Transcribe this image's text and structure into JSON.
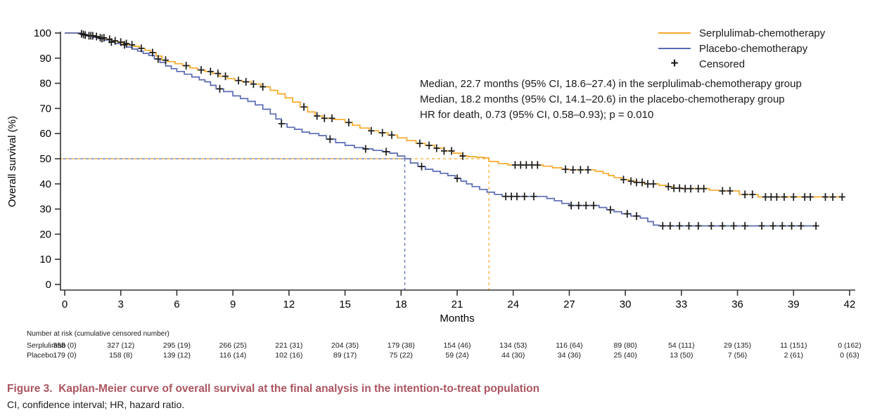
{
  "legend": {
    "series": [
      {
        "label": "Serplulimab-chemotherapy",
        "color": "#F7A82A"
      },
      {
        "label": "Placebo-chemotherapy",
        "color": "#5A6AB3"
      }
    ],
    "censored_symbol": "+",
    "censored_label": "Censored"
  },
  "annotation": {
    "line1": "Median, 22.7 months (95% CI, 18.6–27.4) in the serplulimab-chemotherapy group",
    "line2": "Median, 18.2 months (95% CI, 14.1–20.6) in the placebo-chemotherapy group",
    "line3": "HR for death, 0.73 (95% CI, 0.58–0.93); p = 0.010"
  },
  "risk_table": {
    "header": "Number at risk (cumulative censored number)",
    "rows": [
      {
        "label": "Serplulimab",
        "values": [
          "358 (0)",
          "327 (12)",
          "295 (19)",
          "266 (25)",
          "221 (31)",
          "204 (35)",
          "179 (38)",
          "154 (46)",
          "134 (53)",
          "116 (64)",
          "89 (80)",
          "54 (111)",
          "29 (135)",
          "11 (151)",
          "0 (162)"
        ]
      },
      {
        "label": "Placebo",
        "values": [
          "179 (0)",
          "158 (8)",
          "139 (12)",
          "116 (14)",
          "102 (16)",
          "89 (17)",
          "75 (22)",
          "59 (24)",
          "44 (30)",
          "34 (36)",
          "25 (40)",
          "13 (50)",
          "7 (56)",
          "2 (61)",
          "0 (63)"
        ]
      }
    ]
  },
  "caption": {
    "title": "Figure 3.  Kaplan-Meier curve of overall survival at the final analysis in the intention-to-treat population",
    "footnote": "CI, confidence interval; HR, hazard ratio."
  },
  "chart_data": {
    "type": "line",
    "subtype": "kaplan-meier-step",
    "title": "",
    "xlabel": "Months",
    "ylabel": "Overall survival (%)",
    "xlim": [
      0,
      42
    ],
    "ylim": [
      0,
      100
    ],
    "x_ticks": [
      0,
      3,
      6,
      9,
      12,
      15,
      18,
      21,
      24,
      27,
      30,
      33,
      36,
      39,
      42
    ],
    "y_ticks": [
      0,
      10,
      20,
      30,
      40,
      50,
      60,
      70,
      80,
      90,
      100
    ],
    "grid": false,
    "legend_position": "top-right",
    "axis_color": "#333333",
    "censor_color": "#1a1a1a",
    "medians": {
      "serplulimab_months": 22.7,
      "placebo_months": 18.2,
      "guide_survival_pct": 50
    },
    "series": [
      {
        "name": "Serplulimab-chemotherapy",
        "color": "#F7A82A",
        "steps": [
          [
            0,
            100
          ],
          [
            0.7,
            99.7
          ],
          [
            1,
            99.2
          ],
          [
            1.3,
            98.9
          ],
          [
            1.6,
            98.6
          ],
          [
            1.9,
            98.1
          ],
          [
            2.2,
            97.5
          ],
          [
            2.5,
            96.9
          ],
          [
            2.8,
            96.4
          ],
          [
            3.1,
            95.8
          ],
          [
            3.4,
            95.3
          ],
          [
            3.7,
            94.7
          ],
          [
            4,
            93.9
          ],
          [
            4.3,
            93.1
          ],
          [
            4.6,
            92.2
          ],
          [
            4.9,
            90.8
          ],
          [
            5.2,
            89.2
          ],
          [
            5.5,
            88.6
          ],
          [
            5.9,
            87.8
          ],
          [
            6.3,
            87
          ],
          [
            6.7,
            86.1
          ],
          [
            7.1,
            85.3
          ],
          [
            7.5,
            84.7
          ],
          [
            7.9,
            83.9
          ],
          [
            8.3,
            82.8
          ],
          [
            8.7,
            81.9
          ],
          [
            9.1,
            81.1
          ],
          [
            9.5,
            80.6
          ],
          [
            10,
            79.7
          ],
          [
            10.5,
            78.6
          ],
          [
            11,
            77.2
          ],
          [
            11.4,
            75.8
          ],
          [
            11.8,
            74.2
          ],
          [
            12.2,
            72.5
          ],
          [
            12.6,
            70.6
          ],
          [
            13,
            68.6
          ],
          [
            13.4,
            67
          ],
          [
            13.8,
            66.1
          ],
          [
            14.4,
            65.6
          ],
          [
            15,
            64.4
          ],
          [
            15.4,
            63.3
          ],
          [
            15.8,
            62.2
          ],
          [
            16.3,
            61.1
          ],
          [
            16.8,
            60.3
          ],
          [
            17.3,
            59.4
          ],
          [
            17.8,
            58.3
          ],
          [
            18.3,
            57.2
          ],
          [
            18.8,
            56.1
          ],
          [
            19.3,
            55.3
          ],
          [
            19.8,
            54.2
          ],
          [
            20.3,
            53.1
          ],
          [
            20.8,
            52.2
          ],
          [
            21.2,
            51.1
          ],
          [
            21.6,
            50.8
          ],
          [
            22,
            50.6
          ],
          [
            22.4,
            50.3
          ],
          [
            22.7,
            48.9
          ],
          [
            23.2,
            48.1
          ],
          [
            23.7,
            47.5
          ],
          [
            25.6,
            47
          ],
          [
            26.1,
            46.4
          ],
          [
            26.6,
            45.8
          ],
          [
            27,
            45.6
          ],
          [
            28.4,
            45
          ],
          [
            28.8,
            44.2
          ],
          [
            29.1,
            43.3
          ],
          [
            29.4,
            42.5
          ],
          [
            29.8,
            41.7
          ],
          [
            30.2,
            41.1
          ],
          [
            30.6,
            40.6
          ],
          [
            31,
            40
          ],
          [
            31.8,
            39.4
          ],
          [
            32.2,
            38.9
          ],
          [
            32.6,
            38.3
          ],
          [
            33,
            38.1
          ],
          [
            34.5,
            37.5
          ],
          [
            35,
            37.2
          ],
          [
            36.1,
            35.8
          ],
          [
            37.1,
            34.8
          ],
          [
            41.6,
            34.8
          ]
        ],
        "censor_times": [
          0.9,
          1.1,
          1.3,
          1.5,
          1.7,
          1.9,
          2.1,
          2.4,
          2.7,
          3.0,
          3.3,
          3.6,
          4.1,
          4.7,
          5.4,
          6.5,
          7.3,
          7.8,
          8.2,
          8.6,
          9.3,
          9.7,
          10.1,
          10.6,
          12.8,
          13.5,
          13.9,
          14.3,
          15.2,
          16.4,
          17.0,
          17.5,
          19.0,
          19.5,
          19.9,
          20.3,
          20.7,
          21.3,
          24.1,
          24.4,
          24.7,
          25.0,
          25.3,
          26.8,
          27.2,
          27.6,
          28.0,
          29.9,
          30.3,
          30.6,
          30.9,
          31.2,
          31.5,
          32.3,
          32.6,
          32.9,
          33.2,
          33.5,
          33.9,
          34.2,
          35.2,
          35.6,
          36.4,
          36.8,
          37.5,
          37.8,
          38.1,
          38.5,
          39.0,
          39.6,
          39.9,
          40.7,
          41.1,
          41.6
        ]
      },
      {
        "name": "Placebo-chemotherapy",
        "color": "#5A6AB3",
        "steps": [
          [
            0,
            100
          ],
          [
            0.9,
            99.4
          ],
          [
            1.2,
            98.9
          ],
          [
            1.5,
            98.3
          ],
          [
            1.8,
            97.8
          ],
          [
            2.1,
            97.2
          ],
          [
            2.4,
            96.4
          ],
          [
            2.7,
            95.8
          ],
          [
            3,
            95.3
          ],
          [
            3.3,
            94.4
          ],
          [
            3.6,
            93.6
          ],
          [
            3.9,
            92.8
          ],
          [
            4.2,
            91.9
          ],
          [
            4.5,
            91.1
          ],
          [
            4.8,
            89.7
          ],
          [
            5.1,
            88.3
          ],
          [
            5.4,
            86.9
          ],
          [
            5.7,
            85.8
          ],
          [
            6,
            84.7
          ],
          [
            6.4,
            83.6
          ],
          [
            6.8,
            82.5
          ],
          [
            7.2,
            81.4
          ],
          [
            7.5,
            80.6
          ],
          [
            7.8,
            79.2
          ],
          [
            8.1,
            77.8
          ],
          [
            8.5,
            76.7
          ],
          [
            9,
            75
          ],
          [
            9.4,
            73.9
          ],
          [
            9.8,
            72.8
          ],
          [
            10.2,
            71.4
          ],
          [
            10.6,
            69.7
          ],
          [
            11,
            67.8
          ],
          [
            11.3,
            65.8
          ],
          [
            11.6,
            63.9
          ],
          [
            11.9,
            62.5
          ],
          [
            12.3,
            61.7
          ],
          [
            12.7,
            60.6
          ],
          [
            13.1,
            60
          ],
          [
            13.6,
            59.2
          ],
          [
            14,
            57.8
          ],
          [
            14.5,
            56.4
          ],
          [
            15,
            55.3
          ],
          [
            15.5,
            54.4
          ],
          [
            16,
            53.9
          ],
          [
            16.5,
            53.3
          ],
          [
            17,
            52.8
          ],
          [
            17.4,
            52.2
          ],
          [
            17.8,
            51.1
          ],
          [
            18.2,
            50
          ],
          [
            18.5,
            48.3
          ],
          [
            18.9,
            46.9
          ],
          [
            19.3,
            45.8
          ],
          [
            19.7,
            45
          ],
          [
            20.1,
            44.2
          ],
          [
            20.5,
            43.3
          ],
          [
            20.9,
            42.2
          ],
          [
            21.2,
            41.1
          ],
          [
            21.5,
            40
          ],
          [
            21.8,
            38.9
          ],
          [
            22.2,
            37.8
          ],
          [
            22.6,
            36.7
          ],
          [
            23,
            35.8
          ],
          [
            23.4,
            35
          ],
          [
            25.8,
            34.2
          ],
          [
            26.2,
            33.3
          ],
          [
            26.6,
            32.2
          ],
          [
            27,
            31.4
          ],
          [
            28.6,
            30.6
          ],
          [
            29,
            29.7
          ],
          [
            29.4,
            28.9
          ],
          [
            29.8,
            28.1
          ],
          [
            30.3,
            27.2
          ],
          [
            30.8,
            26.4
          ],
          [
            31.2,
            25
          ],
          [
            31.5,
            23.6
          ],
          [
            31.8,
            23.3
          ],
          [
            40.3,
            23.3
          ]
        ],
        "censor_times": [
          1.0,
          1.4,
          2.0,
          2.5,
          3.2,
          5.0,
          8.3,
          11.6,
          14.2,
          16.1,
          17.2,
          19.1,
          21.0,
          23.6,
          23.9,
          24.2,
          24.6,
          25.1,
          27.1,
          27.5,
          27.9,
          28.3,
          29.2,
          30.1,
          30.6,
          32.0,
          32.4,
          32.9,
          33.4,
          33.9,
          34.6,
          35.2,
          35.8,
          36.4,
          37.3,
          37.9,
          38.4,
          38.9,
          39.4,
          40.2
        ]
      }
    ],
    "risk_table_months": [
      0,
      3,
      6,
      9,
      12,
      15,
      18,
      21,
      24,
      27,
      30,
      33,
      36,
      39,
      42
    ]
  }
}
